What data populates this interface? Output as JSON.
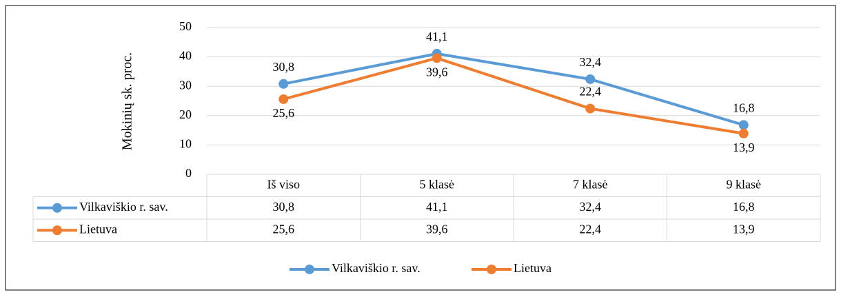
{
  "chart_data": {
    "type": "line",
    "y_axis_label": "Mokinių sk. proc.",
    "categories": [
      "Iš viso",
      "5 klasė",
      "7 klasė",
      "9 klasė"
    ],
    "series": [
      {
        "name": "Vilkaviškio r. sav.",
        "color": "#5b9bd5",
        "values": [
          30.8,
          41.1,
          32.4,
          16.8
        ],
        "value_labels": [
          "30,8",
          "41,1",
          "32,4",
          "16,8"
        ]
      },
      {
        "name": "Lietuva",
        "color": "#ed7d31",
        "values": [
          25.6,
          39.6,
          22.4,
          13.9
        ],
        "value_labels": [
          "25,6",
          "39,6",
          "22,4",
          "13,9"
        ]
      }
    ],
    "ylim": [
      0,
      50
    ],
    "yticks": [
      0,
      10,
      20,
      30,
      40,
      50
    ],
    "grid": true,
    "legend": "bottom",
    "data_table": true
  }
}
